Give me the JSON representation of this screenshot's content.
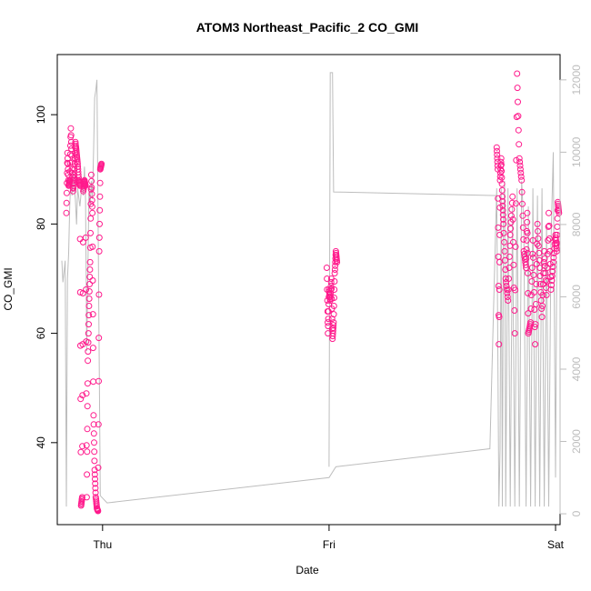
{
  "chart_data": {
    "type": "scatter",
    "title": "ATOM3 Northeast_Pacific_2 CO_GMI",
    "xlabel": "Date",
    "ylabel": "CO_GMI",
    "x_ticks": [
      "Thu",
      "Fri",
      "Sat"
    ],
    "y_left_ticks": [
      "40",
      "60",
      "80",
      "100"
    ],
    "y_right_ticks": [
      "0",
      "2000",
      "4000",
      "6000",
      "8000",
      "10000",
      "12000"
    ],
    "x_range_days": [
      -0.2,
      2.02
    ],
    "ylim": [
      25,
      111
    ],
    "y_right_lim": [
      -300,
      12700
    ],
    "grid": false,
    "colors": {
      "points": "#ff1a8c",
      "altitude_line": "#bdbdbd"
    },
    "series": [
      {
        "segments": [
          {
            "x": [
              -0.16,
              -0.155,
              -0.15,
              -0.145,
              -0.14,
              -0.135,
              -0.13,
              -0.125,
              -0.12,
              -0.115,
              -0.11,
              -0.105,
              -0.1,
              -0.095,
              -0.09,
              -0.085,
              -0.08,
              -0.075,
              -0.07,
              -0.065,
              -0.06,
              -0.055,
              -0.05,
              -0.045,
              -0.04,
              -0.035,
              -0.03,
              -0.025,
              -0.02,
              -0.015,
              -0.01,
              -0.005
            ],
            "y": [
              82,
              93,
              87,
              88,
              97.5,
              90,
              86,
              89,
              95,
              93,
              91,
              88,
              87,
              28.5,
              30,
              86,
              88,
              87,
              30,
              55,
              65,
              73,
              89,
              82,
              45,
              35,
              30,
              28,
              27.5,
              75,
              90,
              91
            ]
          },
          {
            "x": [
              0.99,
              0.995,
              1.0,
              1.005,
              1.01,
              1.015,
              1.02,
              1.025,
              1.03,
              1.035
            ],
            "y": [
              72,
              60,
              68,
              66,
              70,
              59,
              62,
              71,
              75,
              73
            ]
          },
          {
            "x": [
              1.74,
              1.745,
              1.75,
              1.755,
              1.76,
              1.765,
              1.77,
              1.78,
              1.79,
              1.8,
              1.81,
              1.82,
              1.83,
              1.84,
              1.85,
              1.86,
              1.87,
              1.875,
              1.88,
              1.89,
              1.9,
              1.91,
              1.92,
              1.93,
              1.94,
              1.95,
              1.96,
              1.97,
              1.98,
              1.99,
              2.0,
              2.005,
              2.01,
              2.015
            ],
            "y": [
              94,
              90,
              58,
              88,
              92,
              85,
              80,
              70,
              66,
              78,
              85,
              60,
              107.5,
              92,
              88,
              75,
              72,
              82,
              60,
              62,
              77,
              58,
              80,
              72,
              63,
              75,
              67,
              82,
              68,
              73,
              78,
              75,
              84,
              82
            ]
          }
        ]
      }
    ],
    "altitude_segments": [
      {
        "x": [
          -0.18,
          -0.175,
          -0.165,
          -0.16,
          -0.155,
          -0.15,
          -0.145,
          -0.14,
          -0.135,
          -0.13,
          -0.125,
          -0.12,
          -0.115,
          -0.11,
          -0.1,
          -0.09,
          -0.085,
          -0.08,
          -0.075,
          -0.07,
          -0.06,
          -0.055,
          -0.05,
          -0.045,
          -0.04,
          -0.035,
          -0.03,
          -0.025,
          -0.02,
          -0.01
        ],
        "y": [
          7000,
          6400,
          7000,
          200,
          6500,
          7200,
          8500,
          9300,
          8800,
          9500,
          9000,
          8700,
          8000,
          9000,
          8500,
          9200,
          8800,
          9600,
          8700,
          4500,
          9000,
          8500,
          9200,
          8700,
          10000,
          11500,
          11700,
          12000,
          8400,
          500
        ]
      },
      {
        "x": [
          -0.01,
          0.02,
          1.0,
          1.03,
          1.71,
          1.74,
          1.75,
          1.755,
          1.76,
          1.765,
          1.77,
          1.775,
          1.78,
          1.79,
          1.8,
          1.81,
          1.82,
          1.83,
          1.84,
          1.85,
          1.86,
          1.87,
          1.88,
          1.89,
          1.9,
          1.91,
          1.92,
          1.93,
          1.94,
          1.95,
          1.96,
          1.97,
          1.98,
          1.99,
          2.0,
          2.005
        ],
        "y": [
          500,
          300,
          1000,
          1300,
          1800,
          9000,
          200,
          1800,
          9000,
          200,
          8000,
          9200,
          200,
          9000,
          200,
          8500,
          200,
          9000,
          200,
          9200,
          8000,
          200,
          8500,
          200,
          9000,
          200,
          8800,
          200,
          9000,
          200,
          8000,
          200,
          7500,
          10000,
          1000,
          7000
        ]
      },
      {
        "x": [
          1.0,
          1.005,
          1.01,
          1.015,
          1.02,
          1.74
        ],
        "y": [
          1300,
          12200,
          12200,
          12200,
          8900,
          8800
        ]
      }
    ]
  }
}
